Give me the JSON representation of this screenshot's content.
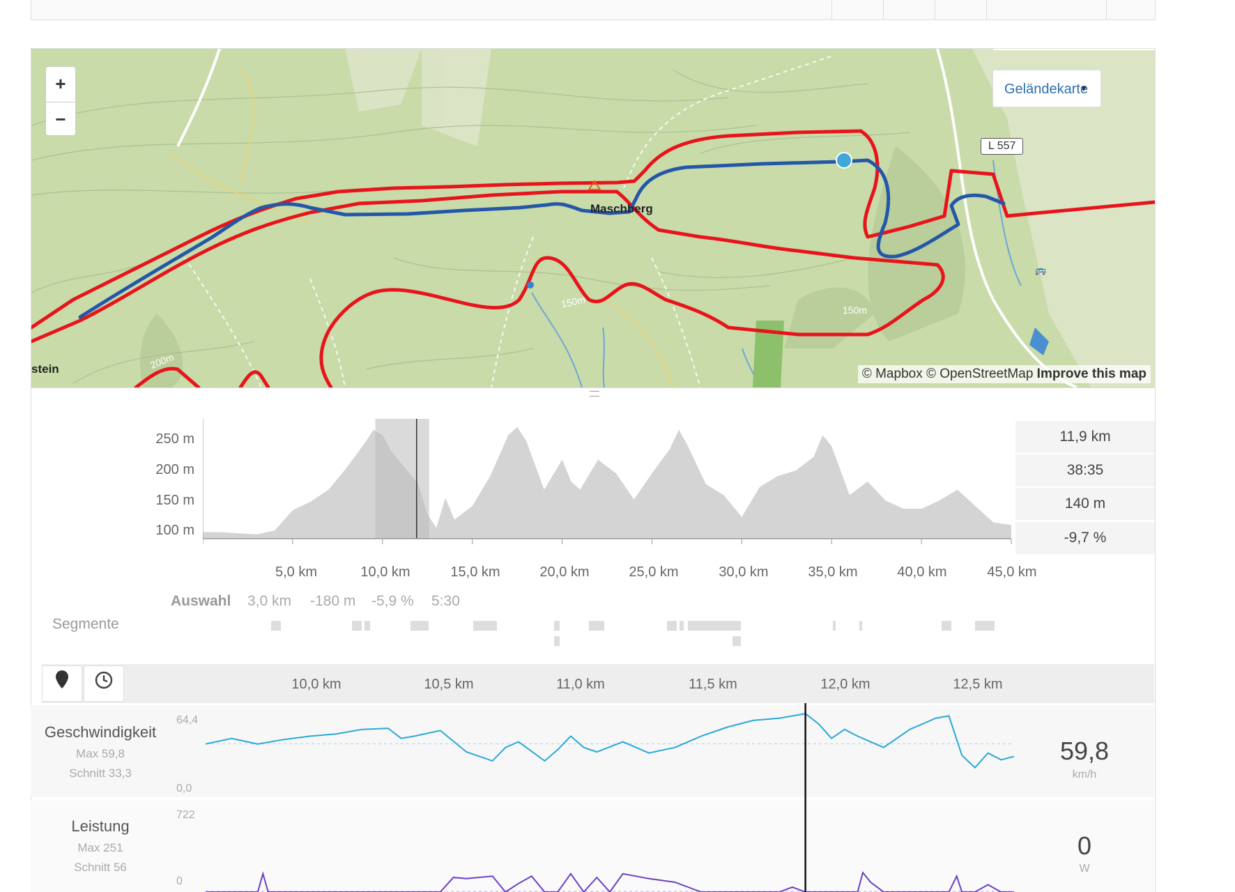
{
  "map": {
    "zoom_in_label": "+",
    "zoom_out_label": "−",
    "layer_label": "Geländekarte",
    "place_label": "Maschberg",
    "place_label_left": "stein",
    "road_badge": "L 557",
    "contour_labels": [
      "150m",
      "150m",
      "200m"
    ],
    "attribution_prefix": "© Mapbox © OpenStreetMap",
    "attribution_link": "Improve this map",
    "colors": {
      "terrain": "#c8dba9",
      "route_red": "#e8141b",
      "route_blue": "#2457a8",
      "marker": "#3ea8d8"
    }
  },
  "elevation": {
    "y_ticks": [
      "250 m",
      "200 m",
      "150 m",
      "100 m"
    ],
    "x_ticks": [
      "5,0 km",
      "10,0 km",
      "15,0 km",
      "20,0 km",
      "25,0 km",
      "30,0 km",
      "35,0 km",
      "40,0 km",
      "45,0 km"
    ],
    "stats": [
      "11,9 km",
      "38:35",
      "140 m",
      "-9,7 %"
    ],
    "selection_label": "Auswahl",
    "selection_values": [
      "3,0 km",
      "-180 m",
      "-5,9 %",
      "5:30"
    ],
    "segments_label": "Segmente"
  },
  "detail": {
    "scale_ticks": [
      "10,0 km",
      "10,5 km",
      "11,0 km",
      "11,5 km",
      "12,0 km",
      "12,5 km"
    ],
    "location_icon": "map-marker-icon",
    "time_icon": "clock-icon",
    "speed": {
      "title": "Geschwindigkeit",
      "max": "Max 59,8",
      "avg": "Schnitt 33,3",
      "y_max": "64,4",
      "y_min": "0,0",
      "current": "59,8",
      "unit": "km/h",
      "color": "#2aa8d8"
    },
    "power": {
      "title": "Leistung",
      "max": "Max 251",
      "avg": "Schnitt 56",
      "y_max": "722",
      "y_min": "0",
      "current": "0",
      "unit": "W",
      "color": "#6a3fc8"
    }
  },
  "chart_data": [
    {
      "type": "area",
      "title": "",
      "xlabel": "",
      "ylabel": "",
      "xlim": [
        0,
        45
      ],
      "ylim": [
        60,
        280
      ],
      "x": [
        0,
        1,
        2,
        3,
        4,
        5,
        6,
        7,
        8,
        9,
        9.5,
        10,
        10.5,
        11,
        12,
        12.5,
        13,
        13.5,
        14,
        15,
        16,
        17,
        17.5,
        18,
        19,
        20,
        20.5,
        21,
        22,
        23,
        24,
        25,
        26,
        26.5,
        27,
        28,
        29,
        30,
        31,
        32,
        33,
        34,
        34.5,
        35,
        36,
        37,
        38,
        39,
        40,
        41,
        42,
        43,
        44,
        45
      ],
      "series": [
        {
          "values": [
            72,
            72,
            70,
            68,
            75,
            112,
            128,
            150,
            190,
            235,
            260,
            250,
            220,
            200,
            160,
            105,
            80,
            135,
            95,
            120,
            175,
            250,
            265,
            240,
            150,
            205,
            165,
            150,
            205,
            180,
            132,
            180,
            225,
            260,
            230,
            160,
            140,
            100,
            155,
            175,
            185,
            210,
            250,
            230,
            140,
            165,
            130,
            115,
            115,
            130,
            150,
            120,
            90,
            85
          ]
        }
      ],
      "selection_km": [
        9.6,
        12.6
      ],
      "cursor_km": 11.9
    },
    {
      "type": "line",
      "title": "",
      "xlabel": "",
      "ylabel": "",
      "xlim": [
        9.6,
        12.7
      ],
      "ylim": [
        0,
        64.4
      ],
      "series": [
        {
          "name": "Geschwindigkeit",
          "x": [
            9.6,
            9.7,
            9.8,
            9.9,
            10.0,
            10.1,
            10.2,
            10.3,
            10.35,
            10.4,
            10.5,
            10.6,
            10.7,
            10.75,
            10.8,
            10.9,
            10.95,
            11.0,
            11.05,
            11.1,
            11.2,
            11.3,
            11.4,
            11.5,
            11.6,
            11.7,
            11.8,
            11.9,
            11.95,
            12.0,
            12.05,
            12.1,
            12.2,
            12.3,
            12.4,
            12.45,
            12.5,
            12.55,
            12.6,
            12.65,
            12.7
          ],
          "values": [
            33,
            38,
            33,
            37,
            40,
            42,
            46,
            47,
            38,
            40,
            45,
            26,
            18,
            30,
            35,
            18,
            28,
            40,
            30,
            26,
            35,
            25,
            30,
            40,
            48,
            54,
            56,
            60,
            51,
            38,
            46,
            40,
            30,
            46,
            56,
            58,
            23,
            12,
            25,
            19,
            22
          ]
        }
      ],
      "cursor_km": 11.9
    },
    {
      "type": "line",
      "title": "",
      "xlabel": "",
      "ylabel": "",
      "xlim": [
        9.6,
        12.7
      ],
      "ylim": [
        0,
        722
      ],
      "series": [
        {
          "name": "Leistung",
          "x": [
            9.6,
            9.8,
            9.82,
            9.84,
            9.86,
            10.2,
            10.4,
            10.5,
            10.55,
            10.6,
            10.7,
            10.75,
            10.8,
            10.85,
            10.9,
            10.95,
            11.0,
            11.05,
            11.1,
            11.15,
            11.2,
            11.3,
            11.4,
            11.45,
            11.5,
            11.8,
            11.85,
            11.9,
            12.1,
            12.12,
            12.15,
            12.2,
            12.45,
            12.48,
            12.5,
            12.55,
            12.6,
            12.65,
            12.7
          ],
          "values": [
            0,
            0,
            150,
            0,
            0,
            0,
            0,
            0,
            120,
            110,
            130,
            0,
            70,
            130,
            0,
            0,
            150,
            0,
            120,
            0,
            150,
            110,
            80,
            40,
            0,
            0,
            40,
            0,
            0,
            160,
            80,
            0,
            0,
            130,
            0,
            0,
            60,
            0,
            0
          ]
        }
      ],
      "cursor_km": 11.9
    }
  ]
}
